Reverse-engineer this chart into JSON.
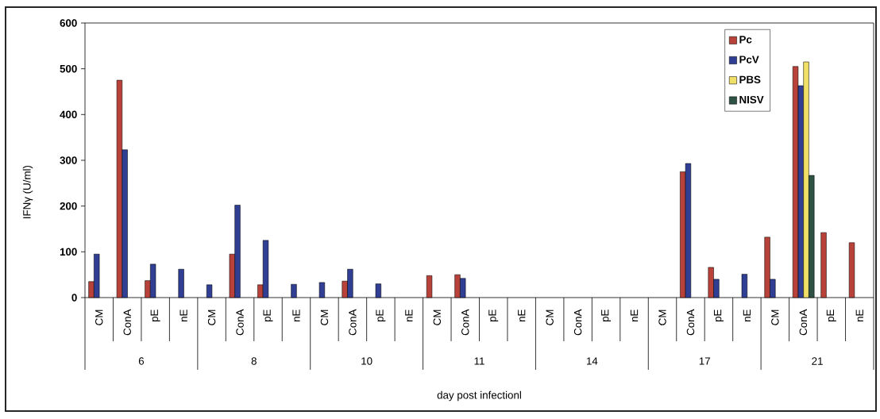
{
  "chart_data": {
    "type": "bar",
    "ylabel": "IFNγ (U/ml)",
    "categories": [
      "CM",
      "ConA",
      "pE",
      "nE",
      "CM",
      "ConA",
      "pE",
      "nE",
      "CM",
      "ConA",
      "pE",
      "nE",
      "CM",
      "ConA",
      "pE",
      "nE",
      "CM",
      "ConA",
      "pE",
      "nE",
      "CM",
      "ConA",
      "pE",
      "nE",
      "CM",
      "ConA",
      "pE",
      "nE"
    ],
    "annotations": [
      "6",
      "8",
      "10",
      "11",
      "14",
      "17",
      "21",
      "day post infectionl"
    ],
    "series": [
      {
        "name": "Pc",
        "color": "#b8423a",
        "values": [
          35,
          475,
          37,
          null,
          null,
          95,
          28,
          null,
          null,
          36,
          null,
          null,
          48,
          50,
          null,
          null,
          null,
          null,
          null,
          null,
          null,
          275,
          66,
          null,
          132,
          505,
          142,
          120
        ]
      },
      {
        "name": "PcV",
        "color": "#303e94",
        "values": [
          95,
          323,
          73,
          62,
          28,
          202,
          125,
          29,
          33,
          62,
          30,
          null,
          null,
          42,
          null,
          null,
          null,
          null,
          null,
          null,
          null,
          293,
          40,
          51,
          40,
          463,
          null,
          null
        ]
      },
      {
        "name": "PBS",
        "color": "#f0e068",
        "values": [
          null,
          null,
          null,
          null,
          null,
          null,
          null,
          null,
          null,
          null,
          null,
          null,
          null,
          null,
          null,
          null,
          null,
          null,
          null,
          null,
          null,
          null,
          null,
          null,
          null,
          515,
          null,
          null
        ]
      },
      {
        "name": "NISV",
        "color": "#2e5244",
        "values": [
          null,
          null,
          null,
          null,
          null,
          null,
          null,
          null,
          null,
          null,
          null,
          null,
          null,
          null,
          null,
          null,
          null,
          null,
          null,
          null,
          null,
          null,
          null,
          null,
          null,
          267,
          null,
          null
        ]
      }
    ],
    "ylim": [
      0,
      600
    ],
    "yticks": [
      0,
      100,
      200,
      300,
      400,
      500,
      600
    ],
    "legend": "top right"
  }
}
